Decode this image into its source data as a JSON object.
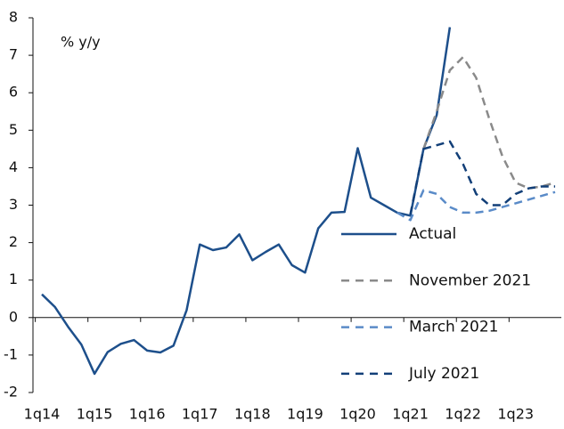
{
  "chart_data": {
    "type": "line",
    "y_label": "% y/y",
    "categories": [
      "1q14",
      null,
      null,
      null,
      "1q15",
      null,
      null,
      null,
      "1q16",
      null,
      null,
      null,
      "1q17",
      null,
      null,
      null,
      "1q18",
      null,
      null,
      null,
      "1q19",
      null,
      null,
      null,
      "1q20",
      null,
      null,
      null,
      "1q21",
      null,
      null,
      null,
      "1q22",
      null,
      null,
      null,
      "1q23",
      null,
      null,
      null
    ],
    "series": [
      {
        "name": "Actual",
        "color": "#1d4f8b",
        "dash": false,
        "values": [
          0.62,
          0.28,
          -0.25,
          -0.72,
          -1.5,
          -0.92,
          -0.7,
          -0.6,
          -0.88,
          -0.93,
          -0.75,
          0.2,
          1.95,
          1.8,
          1.87,
          2.22,
          1.53,
          1.75,
          1.95,
          1.4,
          1.2,
          2.38,
          2.8,
          2.82,
          4.52,
          3.2,
          3.0,
          2.8,
          2.72,
          4.5,
          5.4,
          7.75,
          null,
          null,
          null,
          null,
          null,
          null,
          null,
          null
        ]
      },
      {
        "name": "November 2021",
        "color": "#8a8a8a",
        "dash": true,
        "values": [
          null,
          null,
          null,
          null,
          null,
          null,
          null,
          null,
          null,
          null,
          null,
          null,
          null,
          null,
          null,
          null,
          null,
          null,
          null,
          null,
          null,
          null,
          null,
          null,
          null,
          null,
          null,
          null,
          null,
          4.5,
          5.5,
          6.6,
          6.95,
          6.4,
          5.3,
          4.3,
          3.6,
          3.45,
          3.5,
          3.6
        ]
      },
      {
        "name": "March 2021",
        "color": "#5a8bc8",
        "dash": true,
        "values": [
          null,
          null,
          null,
          null,
          null,
          null,
          null,
          null,
          null,
          null,
          null,
          null,
          null,
          null,
          null,
          null,
          null,
          null,
          null,
          null,
          null,
          null,
          null,
          null,
          null,
          null,
          null,
          2.8,
          2.6,
          3.4,
          3.3,
          2.95,
          2.8,
          2.8,
          2.85,
          2.95,
          3.05,
          3.15,
          3.25,
          3.35
        ]
      },
      {
        "name": "July 2021",
        "color": "#123f78",
        "dash": true,
        "values": [
          null,
          null,
          null,
          null,
          null,
          null,
          null,
          null,
          null,
          null,
          null,
          null,
          null,
          null,
          null,
          null,
          null,
          null,
          null,
          null,
          null,
          null,
          null,
          null,
          null,
          null,
          null,
          null,
          2.75,
          4.5,
          4.6,
          4.7,
          4.1,
          3.3,
          3.0,
          3.0,
          3.3,
          3.45,
          3.5,
          3.5
        ]
      }
    ],
    "ylim": [
      -2,
      8
    ],
    "yticks": [
      -2,
      -1,
      0,
      1,
      2,
      3,
      4,
      5,
      6,
      7,
      8
    ],
    "legend": "right"
  }
}
